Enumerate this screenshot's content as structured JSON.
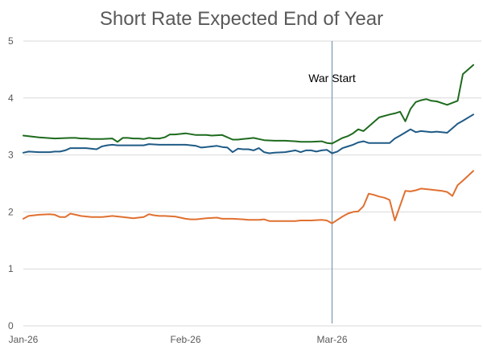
{
  "chart_data": {
    "type": "line",
    "title": "Short Rate Expected End of Year",
    "xlabel": "",
    "ylabel": "",
    "ylim": [
      0,
      5
    ],
    "yticks": [
      "0",
      "1",
      "2",
      "3",
      "4",
      "5"
    ],
    "xticks": [
      {
        "label": "Jan-26",
        "x": 0
      },
      {
        "label": "Feb-26",
        "x": 31
      },
      {
        "label": "Mar-26",
        "x": 59
      }
    ],
    "xlim": [
      0,
      86
    ],
    "grid": true,
    "legend": "none",
    "annotation": {
      "label": "War Start",
      "x": 59
    },
    "series": [
      {
        "color": "#1e6b1e",
        "x": [
          0,
          3,
          6,
          9,
          10,
          11,
          12,
          13,
          15,
          17,
          18,
          19,
          20,
          21,
          22,
          23,
          24,
          25,
          26,
          27,
          28,
          29,
          31,
          33,
          35,
          36,
          38,
          40,
          41,
          42,
          43,
          44,
          45,
          46,
          48,
          50,
          52,
          53,
          55,
          57,
          58,
          59,
          60,
          61,
          62,
          63,
          64,
          65,
          66,
          68,
          70,
          71,
          72,
          73,
          74,
          75,
          76,
          77,
          78,
          79,
          81,
          83,
          84,
          86
        ],
        "y": [
          3.34,
          3.31,
          3.29,
          3.3,
          3.3,
          3.29,
          3.29,
          3.28,
          3.28,
          3.29,
          3.23,
          3.3,
          3.3,
          3.29,
          3.29,
          3.28,
          3.3,
          3.29,
          3.29,
          3.31,
          3.36,
          3.36,
          3.38,
          3.35,
          3.35,
          3.34,
          3.35,
          3.27,
          3.27,
          3.28,
          3.29,
          3.3,
          3.28,
          3.26,
          3.25,
          3.25,
          3.24,
          3.23,
          3.23,
          3.24,
          3.21,
          3.2,
          3.25,
          3.3,
          3.33,
          3.38,
          3.45,
          3.42,
          3.5,
          3.66,
          3.71,
          3.73,
          3.76,
          3.59,
          3.81,
          3.93,
          3.96,
          3.98,
          3.95,
          3.94,
          3.88,
          3.95,
          4.42,
          4.58
        ]
      },
      {
        "color": "#1f5b86",
        "x": [
          0,
          1,
          3,
          5,
          6,
          7,
          8,
          9,
          10,
          12,
          14,
          15,
          16,
          17,
          18,
          19,
          20,
          22,
          23,
          24,
          26,
          28,
          29,
          31,
          33,
          34,
          36,
          37,
          38,
          39,
          40,
          41,
          42,
          43,
          44,
          45,
          46,
          47,
          48,
          50,
          52,
          53,
          54,
          55,
          56,
          57,
          58,
          59,
          60,
          61,
          62,
          63,
          64,
          65,
          66,
          68,
          70,
          71,
          72,
          74,
          75,
          76,
          78,
          79,
          81,
          83,
          84,
          86
        ],
        "y": [
          3.04,
          3.06,
          3.05,
          3.05,
          3.06,
          3.06,
          3.08,
          3.12,
          3.12,
          3.12,
          3.1,
          3.15,
          3.17,
          3.18,
          3.17,
          3.17,
          3.17,
          3.17,
          3.17,
          3.19,
          3.18,
          3.18,
          3.18,
          3.18,
          3.16,
          3.13,
          3.15,
          3.16,
          3.14,
          3.13,
          3.05,
          3.11,
          3.1,
          3.1,
          3.08,
          3.12,
          3.05,
          3.03,
          3.04,
          3.05,
          3.08,
          3.05,
          3.08,
          3.08,
          3.06,
          3.08,
          3.09,
          3.03,
          3.06,
          3.12,
          3.15,
          3.18,
          3.22,
          3.24,
          3.21,
          3.21,
          3.21,
          3.29,
          3.34,
          3.45,
          3.4,
          3.42,
          3.4,
          3.41,
          3.39,
          3.55,
          3.6,
          3.71
        ]
      },
      {
        "color": "#e07030",
        "x": [
          0,
          1,
          3,
          5,
          6,
          7,
          8,
          9,
          10,
          11,
          13,
          15,
          17,
          19,
          21,
          23,
          24,
          25,
          26,
          27,
          29,
          31,
          32,
          33,
          35,
          37,
          38,
          40,
          42,
          43,
          44,
          45,
          46,
          47,
          48,
          50,
          52,
          53,
          55,
          57,
          58,
          59,
          60,
          61,
          62,
          63,
          64,
          65,
          66,
          67,
          68,
          69,
          70,
          71,
          73,
          74,
          75,
          76,
          78,
          80,
          81,
          82,
          83,
          84,
          86
        ],
        "y": [
          1.88,
          1.93,
          1.95,
          1.96,
          1.95,
          1.91,
          1.91,
          1.97,
          1.95,
          1.93,
          1.91,
          1.91,
          1.93,
          1.91,
          1.89,
          1.91,
          1.96,
          1.94,
          1.93,
          1.93,
          1.92,
          1.88,
          1.87,
          1.87,
          1.89,
          1.9,
          1.88,
          1.88,
          1.87,
          1.86,
          1.86,
          1.86,
          1.87,
          1.84,
          1.84,
          1.84,
          1.84,
          1.85,
          1.85,
          1.86,
          1.85,
          1.8,
          1.86,
          1.92,
          1.97,
          2.0,
          2.01,
          2.1,
          2.32,
          2.3,
          2.27,
          2.25,
          2.21,
          1.85,
          2.37,
          2.36,
          2.38,
          2.41,
          2.39,
          2.37,
          2.35,
          2.28,
          2.47,
          2.55,
          2.72
        ]
      }
    ]
  }
}
